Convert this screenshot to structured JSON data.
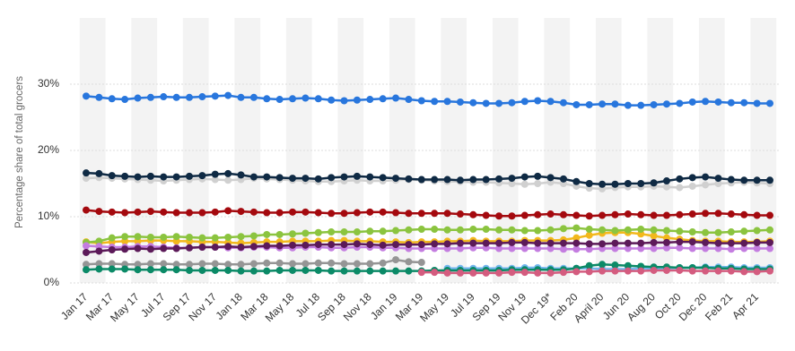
{
  "chart_data": {
    "type": "line",
    "y_label": "Percentage share of total grocers",
    "categories": [
      "Jan 17",
      null,
      "Mar 17",
      null,
      "May 17",
      null,
      "Jul 17",
      null,
      "Sep 17",
      null,
      "Nov 17",
      null,
      "Jan 18",
      null,
      "Mar 18",
      null,
      "May 18",
      null,
      "Jul 18",
      null,
      "Sep 18",
      null,
      "Nov 18",
      null,
      "Jan 19",
      null,
      "Mar 19",
      null,
      "May 19",
      null,
      "Jul 19",
      null,
      "Sep 19",
      null,
      "Nov 19",
      null,
      "Dec 19*",
      null,
      "Feb 20",
      null,
      "April 20",
      null,
      "Jun 20",
      null,
      "Aug 20",
      null,
      "Oct 20",
      null,
      "Dec 20",
      null,
      "Feb 21",
      null,
      "Apr 21",
      null
    ],
    "ylim": [
      0,
      40
    ],
    "yticks": [
      {
        "value": 0,
        "label": "0%"
      },
      {
        "value": 10,
        "label": "10%"
      },
      {
        "value": 20,
        "label": "20%"
      },
      {
        "value": 30,
        "label": "30%"
      }
    ],
    "grid": true,
    "series": [
      {
        "color": "#2876dd",
        "values": [
          28.2,
          28.0,
          27.8,
          27.7,
          27.9,
          28.0,
          28.1,
          28.0,
          28.0,
          28.1,
          28.2,
          28.3,
          28.0,
          28.0,
          27.8,
          27.7,
          27.8,
          27.9,
          27.8,
          27.6,
          27.5,
          27.6,
          27.7,
          27.8,
          27.9,
          27.7,
          27.5,
          27.4,
          27.4,
          27.3,
          27.2,
          27.1,
          27.1,
          27.2,
          27.4,
          27.5,
          27.4,
          27.2,
          26.9,
          26.9,
          27.0,
          27.0,
          26.8,
          26.8,
          26.9,
          27.0,
          27.1,
          27.3,
          27.4,
          27.3,
          27.2,
          27.2,
          27.1,
          27.1
        ]
      },
      {
        "color": "#d0d0d0",
        "values": [
          15.8,
          15.9,
          15.8,
          15.7,
          15.6,
          15.5,
          15.4,
          15.5,
          15.6,
          15.7,
          15.6,
          15.5,
          15.6,
          15.8,
          15.7,
          15.6,
          15.5,
          15.4,
          15.3,
          15.3,
          15.4,
          15.5,
          15.4,
          15.4,
          15.5,
          15.6,
          15.5,
          15.4,
          15.3,
          15.3,
          15.2,
          15.2,
          15.1,
          15.0,
          14.9,
          15.0,
          15.2,
          15.0,
          14.6,
          14.3,
          14.2,
          14.4,
          14.5,
          14.5,
          14.6,
          14.5,
          14.4,
          14.6,
          14.8,
          15.0,
          15.1,
          15.2,
          15.1,
          15.0
        ]
      },
      {
        "color": "#0f2a44",
        "values": [
          16.6,
          16.5,
          16.2,
          16.1,
          16.0,
          16.1,
          16.0,
          16.0,
          16.1,
          16.2,
          16.4,
          16.5,
          16.3,
          16.0,
          16.0,
          15.9,
          15.8,
          15.8,
          15.7,
          15.9,
          16.0,
          16.1,
          16.0,
          15.9,
          15.8,
          15.7,
          15.6,
          15.6,
          15.6,
          15.5,
          15.6,
          15.6,
          15.7,
          15.8,
          16.0,
          16.1,
          15.9,
          15.7,
          15.3,
          15.0,
          14.9,
          14.9,
          15.0,
          15.0,
          15.1,
          15.4,
          15.7,
          15.9,
          16.0,
          15.8,
          15.6,
          15.5,
          15.5,
          15.5
        ]
      },
      {
        "color": "#a4090e",
        "values": [
          11.0,
          10.8,
          10.7,
          10.6,
          10.7,
          10.8,
          10.7,
          10.6,
          10.6,
          10.6,
          10.7,
          10.9,
          10.8,
          10.7,
          10.6,
          10.6,
          10.7,
          10.7,
          10.6,
          10.5,
          10.5,
          10.6,
          10.7,
          10.7,
          10.6,
          10.5,
          10.5,
          10.5,
          10.5,
          10.4,
          10.3,
          10.2,
          10.1,
          10.1,
          10.2,
          10.3,
          10.4,
          10.3,
          10.2,
          10.1,
          10.2,
          10.3,
          10.4,
          10.3,
          10.2,
          10.2,
          10.3,
          10.4,
          10.5,
          10.5,
          10.4,
          10.3,
          10.2,
          10.2
        ]
      },
      {
        "color": "#f2b81c",
        "values": [
          6.2,
          6.0,
          6.2,
          6.3,
          6.3,
          6.4,
          6.4,
          6.3,
          6.3,
          6.2,
          6.2,
          6.1,
          6.0,
          6.1,
          6.2,
          6.2,
          6.3,
          6.3,
          6.3,
          6.4,
          6.4,
          6.3,
          6.3,
          6.2,
          6.2,
          6.1,
          6.2,
          6.2,
          6.3,
          6.3,
          6.4,
          6.3,
          6.3,
          6.3,
          6.4,
          6.4,
          6.4,
          6.5,
          6.8,
          7.2,
          7.5,
          7.6,
          7.6,
          7.4,
          7.1,
          6.8,
          6.6,
          6.4,
          6.3,
          6.3,
          6.2,
          6.2,
          6.2,
          6.3
        ]
      },
      {
        "color": "#8bc43f",
        "values": [
          6.1,
          6.3,
          6.8,
          7.0,
          7.0,
          6.9,
          6.9,
          7.0,
          6.9,
          6.8,
          6.8,
          6.9,
          7.0,
          7.1,
          7.3,
          7.3,
          7.4,
          7.5,
          7.6,
          7.7,
          7.7,
          7.7,
          7.8,
          7.8,
          7.9,
          8.0,
          8.1,
          8.1,
          8.0,
          8.0,
          8.1,
          8.1,
          8.0,
          8.0,
          7.9,
          7.9,
          8.0,
          8.2,
          8.3,
          8.1,
          8.0,
          7.9,
          8.0,
          8.1,
          8.0,
          7.9,
          7.8,
          7.7,
          7.6,
          7.6,
          7.7,
          7.8,
          7.9,
          8.0
        ]
      },
      {
        "color": "#c47de0",
        "values": [
          5.6,
          5.5,
          5.4,
          5.4,
          5.5,
          5.5,
          5.4,
          5.3,
          5.3,
          5.4,
          5.4,
          5.3,
          5.3,
          5.4,
          5.4,
          5.3,
          5.3,
          5.4,
          5.4,
          5.3,
          5.3,
          5.4,
          5.4,
          5.3,
          5.3,
          5.2,
          5.2,
          5.2,
          5.2,
          5.2,
          5.3,
          5.3,
          5.2,
          5.2,
          5.2,
          5.2,
          5.2,
          5.1,
          5.1,
          5.1,
          5.2,
          5.2,
          5.2,
          5.2,
          5.2,
          5.3,
          5.3,
          5.2,
          5.2,
          5.2,
          5.1,
          5.2,
          5.2,
          5.2
        ]
      },
      {
        "color": "#5c1a59",
        "values": [
          4.6,
          4.8,
          5.0,
          5.1,
          5.2,
          5.1,
          5.2,
          5.2,
          5.3,
          5.4,
          5.4,
          5.5,
          5.4,
          5.5,
          5.6,
          5.6,
          5.7,
          5.7,
          5.8,
          5.8,
          5.8,
          5.9,
          5.8,
          5.7,
          5.8,
          5.8,
          5.8,
          5.9,
          5.9,
          6.0,
          6.0,
          6.0,
          6.0,
          6.1,
          6.1,
          6.0,
          6.0,
          6.0,
          6.0,
          5.9,
          5.9,
          6.0,
          6.0,
          6.0,
          6.1,
          6.1,
          6.2,
          6.2,
          6.1,
          6.0,
          6.0,
          6.0,
          6.1,
          6.1
        ]
      },
      {
        "color": "#959595",
        "values": [
          2.8,
          2.9,
          2.9,
          2.8,
          2.8,
          2.9,
          2.9,
          2.8,
          2.8,
          2.9,
          2.9,
          2.8,
          2.8,
          2.9,
          3.0,
          3.0,
          2.9,
          2.9,
          3.0,
          3.0,
          2.9,
          2.9,
          2.9,
          3.0,
          3.5,
          3.2,
          3.1,
          null,
          null,
          null,
          null,
          null,
          null,
          null,
          null,
          null,
          null,
          null,
          null,
          null,
          null,
          null,
          null,
          null,
          null,
          null,
          null,
          null,
          null,
          null,
          null,
          null,
          null,
          null
        ]
      },
      {
        "color": "#74b6ee",
        "values": [
          null,
          null,
          null,
          null,
          null,
          null,
          null,
          null,
          null,
          null,
          null,
          null,
          null,
          null,
          null,
          null,
          null,
          null,
          null,
          null,
          null,
          null,
          null,
          null,
          null,
          null,
          null,
          null,
          2.2,
          2.2,
          2.2,
          2.2,
          2.2,
          2.2,
          2.3,
          2.3,
          2.2,
          2.2,
          2.2,
          2.2,
          2.1,
          2.1,
          2.1,
          2.2,
          2.2,
          2.2,
          2.3,
          2.3,
          2.4,
          2.4,
          2.4,
          2.3,
          2.3,
          2.3
        ]
      },
      {
        "color": "#0b8a67",
        "values": [
          2.0,
          2.1,
          2.1,
          2.1,
          2.0,
          2.0,
          2.0,
          2.0,
          1.9,
          1.9,
          1.9,
          1.9,
          1.8,
          1.8,
          1.8,
          1.9,
          1.9,
          1.9,
          1.9,
          1.8,
          1.8,
          1.8,
          1.8,
          1.8,
          1.8,
          1.8,
          1.8,
          1.9,
          1.9,
          1.9,
          1.9,
          1.9,
          1.9,
          2.0,
          2.0,
          2.0,
          2.0,
          2.0,
          2.2,
          2.6,
          2.8,
          2.7,
          2.6,
          2.5,
          2.4,
          2.4,
          2.3,
          2.3,
          2.3,
          2.2,
          2.2,
          2.1,
          2.1,
          2.1
        ]
      },
      {
        "color": "#d45c7f",
        "values": [
          null,
          null,
          null,
          null,
          null,
          null,
          null,
          null,
          null,
          null,
          null,
          null,
          null,
          null,
          null,
          null,
          null,
          null,
          null,
          null,
          null,
          null,
          null,
          null,
          null,
          null,
          1.6,
          1.6,
          1.5,
          1.5,
          1.5,
          1.5,
          1.5,
          1.6,
          1.6,
          1.5,
          1.5,
          1.6,
          1.7,
          1.7,
          1.8,
          1.8,
          1.8,
          1.8,
          1.9,
          1.9,
          1.9,
          1.8,
          1.8,
          1.8,
          1.8,
          1.7,
          1.7,
          1.8
        ]
      }
    ]
  }
}
